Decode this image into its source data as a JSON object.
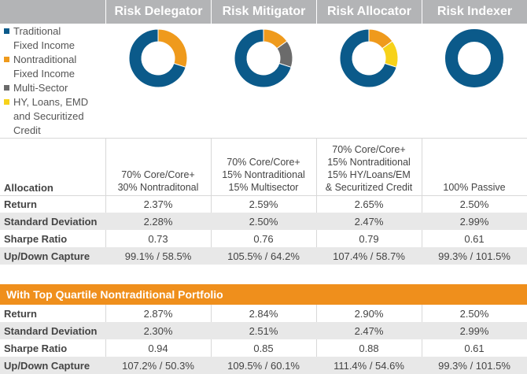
{
  "colors": {
    "header_bg": "#b3b4b6",
    "traditional": "#0b5a8a",
    "nontraditional": "#ef9a1c",
    "multisector": "#6b6b6b",
    "hy_loans": "#f7d21a",
    "orange_bar": "#ef8f1c"
  },
  "columns": [
    "Risk Delegator",
    "Risk Mitigator",
    "Risk Allocator",
    "Risk Indexer"
  ],
  "legend": [
    {
      "label_lines": [
        "Traditional",
        "Fixed Income"
      ],
      "color_key": "traditional"
    },
    {
      "label_lines": [
        "Nontraditional",
        "Fixed Income"
      ],
      "color_key": "nontraditional"
    },
    {
      "label_lines": [
        "Multi-Sector"
      ],
      "color_key": "multisector"
    },
    {
      "label_lines": [
        "HY, Loans, EMD",
        "and Securitized",
        "Credit"
      ],
      "color_key": "hy_loans"
    }
  ],
  "chart_data": {
    "type": "pie",
    "style": "donut",
    "categories": [
      "Traditional Fixed Income",
      "Nontraditional Fixed Income",
      "Multi-Sector",
      "HY, Loans, EMD and Securitized Credit"
    ],
    "charts": [
      {
        "column": "Risk Delegator",
        "values": [
          70,
          30,
          0,
          0
        ]
      },
      {
        "column": "Risk Mitigator",
        "values": [
          70,
          15,
          15,
          0
        ]
      },
      {
        "column": "Risk Allocator",
        "values": [
          70,
          15,
          0,
          15
        ]
      },
      {
        "column": "Risk Indexer",
        "values": [
          100,
          0,
          0,
          0
        ]
      }
    ]
  },
  "table1": {
    "allocation_label": "Allocation",
    "allocations": [
      [
        "70% Core/Core+",
        "30% Nontraditonal"
      ],
      [
        "70% Core/Core+",
        "15% Nontraditional",
        "15% Multisector"
      ],
      [
        "70% Core/Core+",
        "15% Nontraditional",
        "15% HY/Loans/EM",
        "& Securitized Credit"
      ],
      [
        "100% Passive"
      ]
    ],
    "rows": [
      {
        "label": "Return",
        "values": [
          "2.37%",
          "2.59%",
          "2.65%",
          "2.50%"
        ]
      },
      {
        "label": "Standard Deviation",
        "values": [
          "2.28%",
          "2.50%",
          "2.47%",
          "2.99%"
        ]
      },
      {
        "label": "Sharpe Ratio",
        "values": [
          "0.73",
          "0.76",
          "0.79",
          "0.61"
        ]
      },
      {
        "label": "Up/Down Capture",
        "values": [
          "99.1% / 58.5%",
          "105.5% / 64.2%",
          "107.4% / 58.7%",
          "99.3% / 101.5%"
        ]
      }
    ]
  },
  "section2_title": "With Top Quartile Nontraditional Portfolio",
  "table2": {
    "rows": [
      {
        "label": "Return",
        "values": [
          "2.87%",
          "2.84%",
          "2.90%",
          "2.50%"
        ]
      },
      {
        "label": "Standard Deviation",
        "values": [
          "2.30%",
          "2.51%",
          "2.47%",
          "2.99%"
        ]
      },
      {
        "label": "Sharpe Ratio",
        "values": [
          "0.94",
          "0.85",
          "0.88",
          "0.61"
        ]
      },
      {
        "label": "Up/Down Capture",
        "values": [
          "107.2% / 50.3%",
          "109.5% / 60.1%",
          "111.4% / 54.6%",
          "99.3% / 101.5%"
        ]
      }
    ]
  }
}
